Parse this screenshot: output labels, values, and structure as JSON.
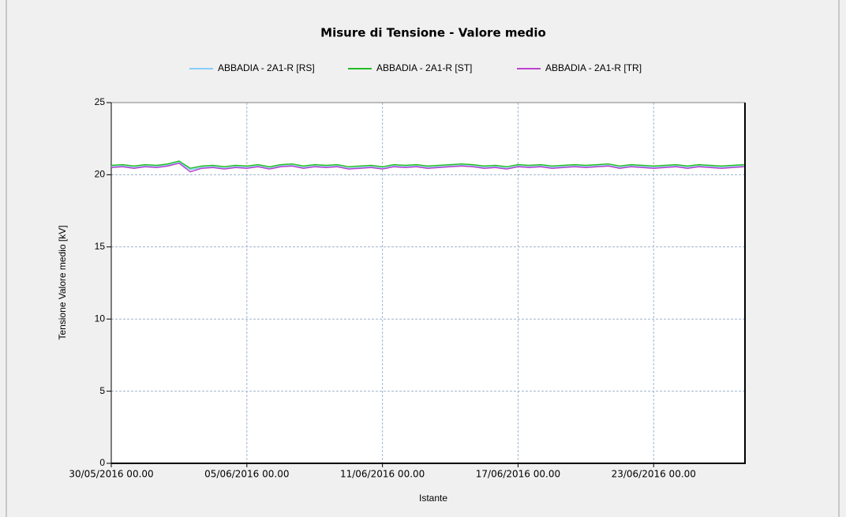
{
  "chart_data": {
    "type": "line",
    "title": "Misure di Tensione - Valore medio",
    "xlabel": "Istante",
    "ylabel": "Tensione Valore medio [kV]",
    "x": [
      "2016-05-30T00:00",
      "2016-05-30T12:00",
      "2016-05-31T00:00",
      "2016-05-31T12:00",
      "2016-06-01T00:00",
      "2016-06-01T12:00",
      "2016-06-02T00:00",
      "2016-06-02T12:00",
      "2016-06-03T00:00",
      "2016-06-03T12:00",
      "2016-06-04T00:00",
      "2016-06-04T12:00",
      "2016-06-05T00:00",
      "2016-06-05T12:00",
      "2016-06-06T00:00",
      "2016-06-06T12:00",
      "2016-06-07T00:00",
      "2016-06-07T12:00",
      "2016-06-08T00:00",
      "2016-06-08T12:00",
      "2016-06-09T00:00",
      "2016-06-09T12:00",
      "2016-06-10T00:00",
      "2016-06-10T12:00",
      "2016-06-11T00:00",
      "2016-06-11T12:00",
      "2016-06-12T00:00",
      "2016-06-12T12:00",
      "2016-06-13T00:00",
      "2016-06-13T12:00",
      "2016-06-14T00:00",
      "2016-06-14T12:00",
      "2016-06-15T00:00",
      "2016-06-15T12:00",
      "2016-06-16T00:00",
      "2016-06-16T12:00",
      "2016-06-17T00:00",
      "2016-06-17T12:00",
      "2016-06-18T00:00",
      "2016-06-18T12:00",
      "2016-06-19T00:00",
      "2016-06-19T12:00",
      "2016-06-20T00:00",
      "2016-06-20T12:00",
      "2016-06-21T00:00",
      "2016-06-21T12:00",
      "2016-06-22T00:00",
      "2016-06-22T12:00",
      "2016-06-23T00:00",
      "2016-06-23T12:00",
      "2016-06-24T00:00",
      "2016-06-24T12:00",
      "2016-06-25T00:00",
      "2016-06-25T12:00",
      "2016-06-26T00:00",
      "2016-06-26T12:00",
      "2016-06-27T00:00"
    ],
    "series": [
      {
        "name": "ABBADIA - 2A1-R [RS]",
        "color": "#87cefa",
        "values": [
          20.55,
          20.6,
          20.5,
          20.6,
          20.55,
          20.65,
          20.85,
          20.35,
          20.5,
          20.55,
          20.45,
          20.55,
          20.5,
          20.6,
          20.45,
          20.6,
          20.65,
          20.5,
          20.6,
          20.55,
          20.6,
          20.45,
          20.5,
          20.55,
          20.45,
          20.6,
          20.55,
          20.6,
          20.5,
          20.55,
          20.6,
          20.65,
          20.6,
          20.5,
          20.55,
          20.45,
          20.6,
          20.55,
          20.6,
          20.5,
          20.55,
          20.6,
          20.55,
          20.6,
          20.65,
          20.5,
          20.6,
          20.55,
          20.5,
          20.55,
          20.6,
          20.5,
          20.6,
          20.55,
          20.5,
          20.55,
          20.6
        ]
      },
      {
        "name": "ABBADIA - 2A1-R [ST]",
        "color": "#22bb22",
        "values": [
          20.65,
          20.7,
          20.6,
          20.7,
          20.65,
          20.75,
          20.95,
          20.45,
          20.6,
          20.65,
          20.55,
          20.65,
          20.6,
          20.7,
          20.55,
          20.7,
          20.75,
          20.6,
          20.7,
          20.65,
          20.7,
          20.55,
          20.6,
          20.65,
          20.55,
          20.7,
          20.65,
          20.7,
          20.6,
          20.65,
          20.7,
          20.75,
          20.7,
          20.6,
          20.65,
          20.55,
          20.7,
          20.65,
          20.7,
          20.6,
          20.65,
          20.7,
          20.65,
          20.7,
          20.75,
          20.6,
          20.7,
          20.65,
          20.6,
          20.65,
          20.7,
          20.6,
          20.7,
          20.65,
          20.6,
          20.65,
          20.7
        ]
      },
      {
        "name": "ABBADIA - 2A1-R [TR]",
        "color": "#bb44cc",
        "values": [
          20.5,
          20.55,
          20.45,
          20.55,
          20.5,
          20.6,
          20.8,
          20.2,
          20.45,
          20.5,
          20.4,
          20.5,
          20.45,
          20.55,
          20.4,
          20.55,
          20.6,
          20.45,
          20.55,
          20.5,
          20.55,
          20.4,
          20.45,
          20.5,
          20.4,
          20.55,
          20.5,
          20.55,
          20.45,
          20.5,
          20.55,
          20.6,
          20.55,
          20.45,
          20.5,
          20.4,
          20.55,
          20.5,
          20.55,
          20.45,
          20.5,
          20.55,
          20.5,
          20.55,
          20.6,
          20.45,
          20.55,
          20.5,
          20.45,
          20.5,
          20.55,
          20.45,
          20.55,
          20.5,
          20.45,
          20.5,
          20.55
        ]
      }
    ],
    "xlim": [
      "2016-05-30T00:00",
      "2016-06-27T01:00"
    ],
    "xticks": [
      {
        "value": "2016-05-30T00:00",
        "label": "30/05/2016 00.00"
      },
      {
        "value": "2016-06-05T00:00",
        "label": "05/06/2016 00.00"
      },
      {
        "value": "2016-06-11T00:00",
        "label": "11/06/2016 00.00"
      },
      {
        "value": "2016-06-17T00:00",
        "label": "17/06/2016 00.00"
      },
      {
        "value": "2016-06-23T00:00",
        "label": "23/06/2016 00.00"
      }
    ],
    "ylim": [
      0,
      25
    ],
    "yticks": [
      0,
      5,
      10,
      15,
      20,
      25
    ],
    "grid": true,
    "legend": "top"
  }
}
